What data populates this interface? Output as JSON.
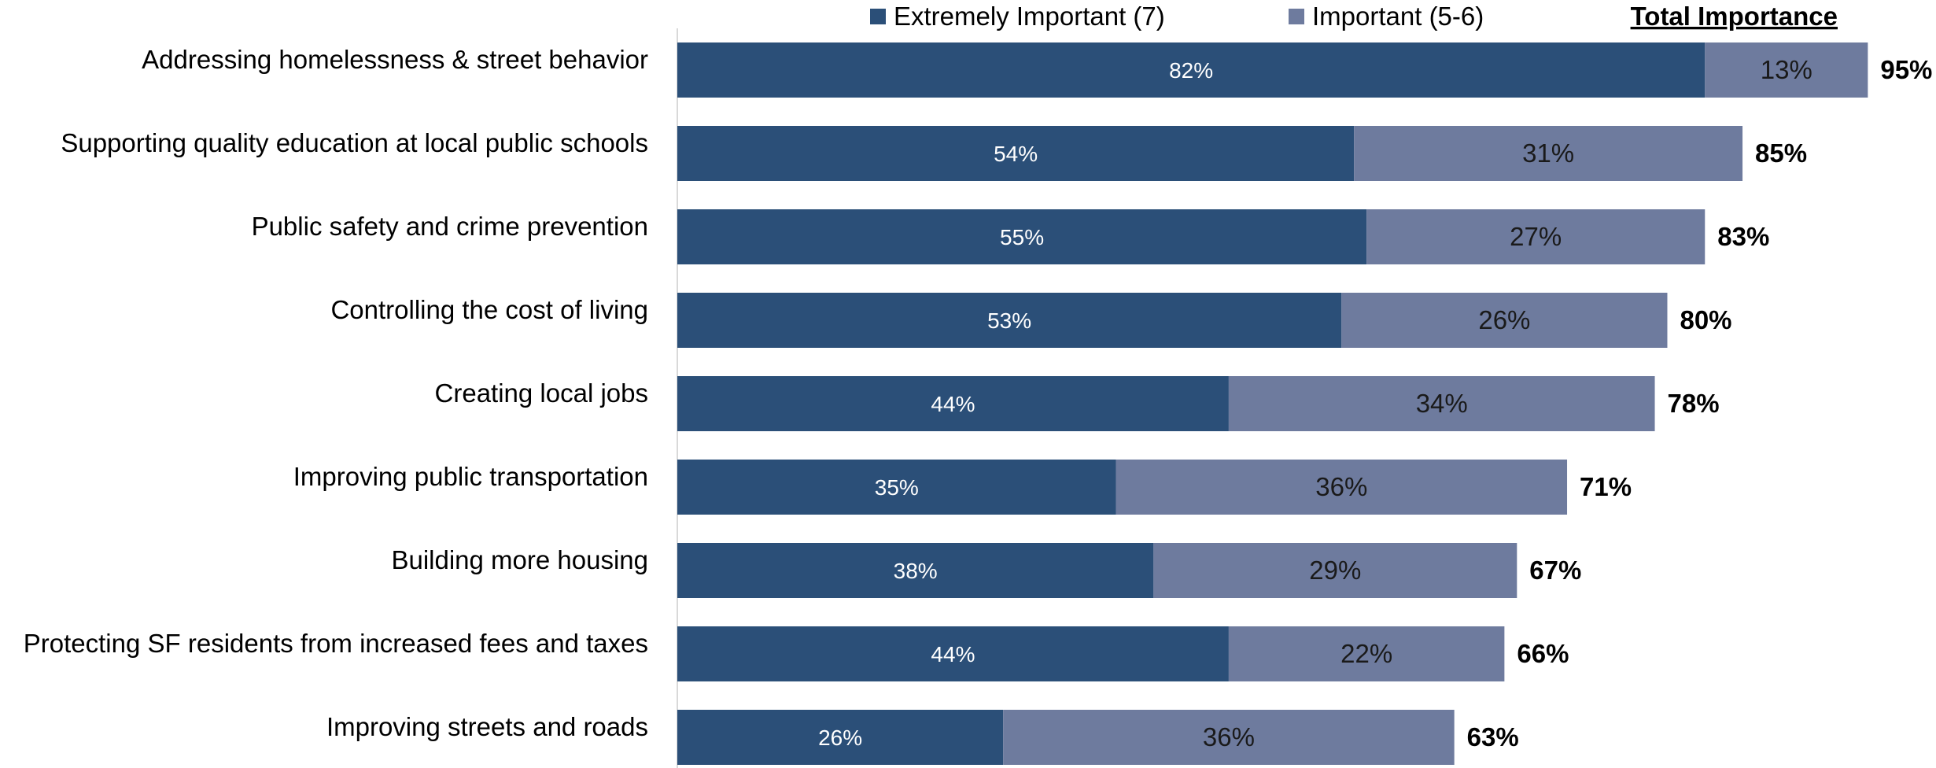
{
  "chart_data": {
    "type": "bar",
    "orientation": "horizontal",
    "stacked": true,
    "categories": [
      "Addressing homelessness & street behavior",
      "Supporting quality education at local public schools",
      "Public safety and crime prevention",
      "Controlling the cost of living",
      "Creating local jobs",
      "Improving public transportation",
      "Building more housing",
      "Protecting SF residents from increased fees and taxes",
      "Improving streets and roads"
    ],
    "series": [
      {
        "name": "Extremely Important (7)",
        "color": "#2b4f78",
        "values": [
          82,
          54,
          55,
          53,
          44,
          35,
          38,
          44,
          26
        ],
        "labels": [
          "82%",
          "54%",
          "55%",
          "53%",
          "44%",
          "35%",
          "38%",
          "44%",
          "26%"
        ]
      },
      {
        "name": "Important (5-6)",
        "color": "#6e7b9e",
        "values": [
          13,
          31,
          27,
          26,
          34,
          36,
          29,
          22,
          36
        ],
        "labels": [
          "13%",
          "31%",
          "27%",
          "26%",
          "34%",
          "36%",
          "29%",
          "22%",
          "36%"
        ]
      }
    ],
    "totals_header": "Total Importance",
    "totals": [
      "95%",
      "85%",
      "83%",
      "80%",
      "78%",
      "71%",
      "67%",
      "66%",
      "63%"
    ],
    "xlim": [
      0,
      100
    ],
    "grid": false,
    "legend_position": "top"
  }
}
